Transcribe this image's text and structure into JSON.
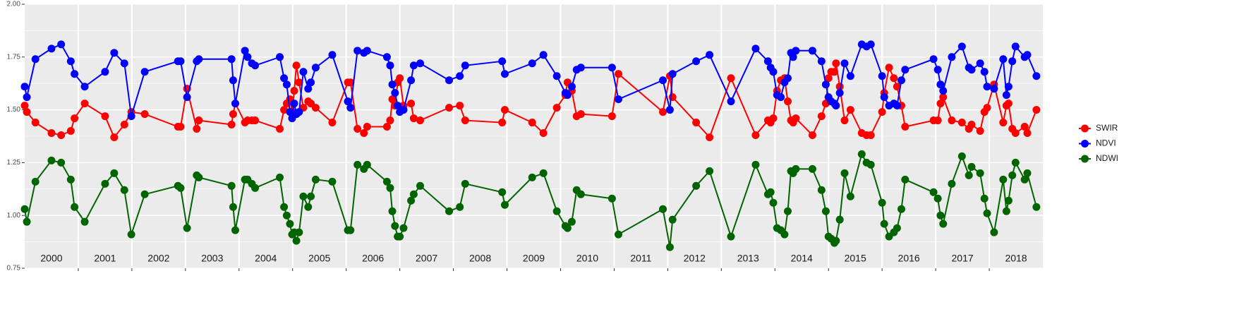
{
  "chart_data": {
    "type": "line",
    "x": [
      2000.0,
      2000.04,
      2000.2,
      2000.5,
      2000.68,
      2000.86,
      2000.93,
      2001.12,
      2001.5,
      2001.67,
      2001.86,
      2001.99,
      2002.24,
      2002.86,
      2002.91,
      2003.03,
      2003.21,
      2003.25,
      2003.86,
      2003.89,
      2003.93,
      2004.11,
      2004.16,
      2004.24,
      2004.3,
      2004.76,
      2004.84,
      2004.89,
      2004.95,
      2004.99,
      2005.03,
      2005.07,
      2005.12,
      2005.2,
      2005.29,
      2005.34,
      2005.43,
      2005.74,
      2006.03,
      2006.08,
      2006.21,
      2006.33,
      2006.39,
      2006.76,
      2006.82,
      2006.86,
      2006.91,
      2006.96,
      2007.0,
      2007.07,
      2007.21,
      2007.26,
      2007.38,
      2007.92,
      2008.12,
      2008.22,
      2008.91,
      2008.96,
      2009.47,
      2009.68,
      2009.93,
      2010.09,
      2010.13,
      2010.21,
      2010.3,
      2010.38,
      2010.96,
      2011.08,
      2011.91,
      2012.04,
      2012.09,
      2012.53,
      2012.78,
      2013.18,
      2013.64,
      2013.87,
      2013.92,
      2013.97,
      2014.04,
      2014.11,
      2014.18,
      2014.24,
      2014.3,
      2014.34,
      2014.39,
      2014.7,
      2014.87,
      2014.95,
      2015.0,
      2015.05,
      2015.11,
      2015.14,
      2015.21,
      2015.3,
      2015.41,
      2015.62,
      2015.71,
      2015.79,
      2016.0,
      2016.04,
      2016.13,
      2016.22,
      2016.28,
      2016.36,
      2016.43,
      2016.96,
      2017.04,
      2017.09,
      2017.14,
      2017.3,
      2017.49,
      2017.62,
      2017.67,
      2017.83,
      2017.91,
      2017.96,
      2018.09,
      2018.26,
      2018.32,
      2018.36,
      2018.43,
      2018.49,
      2018.66,
      2018.71,
      2018.88
    ],
    "series": [
      {
        "name": "SWIR",
        "color": "#ff0000",
        "values": [
          1.52,
          1.49,
          1.44,
          1.39,
          1.38,
          1.4,
          1.46,
          1.53,
          1.47,
          1.37,
          1.43,
          1.49,
          1.48,
          1.42,
          1.42,
          1.6,
          1.41,
          1.45,
          1.43,
          1.48,
          1.53,
          1.44,
          1.45,
          1.45,
          1.45,
          1.41,
          1.5,
          1.53,
          1.55,
          1.49,
          1.59,
          1.71,
          1.63,
          1.51,
          1.54,
          1.53,
          1.51,
          1.44,
          1.63,
          1.63,
          1.41,
          1.39,
          1.42,
          1.42,
          1.45,
          1.55,
          1.52,
          1.63,
          1.65,
          1.52,
          1.53,
          1.46,
          1.45,
          1.51,
          1.52,
          1.45,
          1.44,
          1.5,
          1.44,
          1.39,
          1.51,
          1.57,
          1.63,
          1.59,
          1.47,
          1.48,
          1.47,
          1.67,
          1.49,
          1.66,
          1.56,
          1.44,
          1.37,
          1.65,
          1.38,
          1.45,
          1.44,
          1.46,
          1.59,
          1.64,
          1.65,
          1.54,
          1.45,
          1.44,
          1.46,
          1.38,
          1.47,
          1.53,
          1.65,
          1.68,
          1.68,
          1.72,
          1.61,
          1.45,
          1.5,
          1.39,
          1.38,
          1.38,
          1.49,
          1.58,
          1.7,
          1.65,
          1.61,
          1.52,
          1.42,
          1.45,
          1.45,
          1.53,
          1.56,
          1.45,
          1.44,
          1.41,
          1.43,
          1.4,
          1.49,
          1.51,
          1.62,
          1.44,
          1.52,
          1.53,
          1.41,
          1.39,
          1.42,
          1.39,
          1.5
        ]
      },
      {
        "name": "NDVI",
        "color": "#0000ff",
        "values": [
          1.61,
          1.56,
          1.74,
          1.79,
          1.81,
          1.73,
          1.67,
          1.61,
          1.68,
          1.77,
          1.72,
          1.47,
          1.68,
          1.73,
          1.73,
          1.56,
          1.73,
          1.74,
          1.74,
          1.64,
          1.53,
          1.78,
          1.75,
          1.72,
          1.71,
          1.75,
          1.65,
          1.62,
          1.49,
          1.46,
          1.53,
          1.48,
          1.49,
          1.68,
          1.6,
          1.63,
          1.7,
          1.76,
          1.54,
          1.51,
          1.78,
          1.77,
          1.78,
          1.75,
          1.71,
          1.62,
          1.58,
          1.52,
          1.49,
          1.5,
          1.64,
          1.71,
          1.72,
          1.64,
          1.66,
          1.71,
          1.73,
          1.67,
          1.72,
          1.76,
          1.66,
          1.58,
          1.57,
          1.61,
          1.69,
          1.7,
          1.7,
          1.55,
          1.64,
          1.5,
          1.67,
          1.73,
          1.76,
          1.54,
          1.79,
          1.73,
          1.7,
          1.68,
          1.57,
          1.56,
          1.63,
          1.65,
          1.77,
          1.75,
          1.78,
          1.78,
          1.73,
          1.62,
          1.56,
          1.54,
          1.53,
          1.52,
          1.58,
          1.72,
          1.66,
          1.81,
          1.8,
          1.81,
          1.66,
          1.56,
          1.52,
          1.53,
          1.52,
          1.64,
          1.69,
          1.74,
          1.69,
          1.62,
          1.59,
          1.75,
          1.8,
          1.7,
          1.69,
          1.72,
          1.68,
          1.61,
          1.6,
          1.74,
          1.57,
          1.61,
          1.73,
          1.8,
          1.75,
          1.76,
          1.66
        ]
      },
      {
        "name": "NDWI",
        "color": "#006400",
        "values": [
          1.03,
          0.97,
          1.16,
          1.26,
          1.25,
          1.17,
          1.04,
          0.97,
          1.15,
          1.2,
          1.12,
          0.91,
          1.1,
          1.14,
          1.13,
          0.94,
          1.19,
          1.18,
          1.14,
          1.04,
          0.93,
          1.17,
          1.17,
          1.15,
          1.13,
          1.18,
          1.04,
          1.0,
          0.96,
          0.91,
          0.92,
          0.88,
          0.92,
          1.09,
          1.04,
          1.09,
          1.17,
          1.16,
          0.93,
          0.93,
          1.24,
          1.22,
          1.24,
          1.16,
          1.13,
          1.02,
          0.95,
          0.9,
          0.9,
          0.94,
          1.07,
          1.1,
          1.14,
          1.02,
          1.04,
          1.15,
          1.11,
          1.05,
          1.18,
          1.2,
          1.02,
          0.95,
          0.94,
          0.97,
          1.12,
          1.1,
          1.08,
          0.91,
          1.03,
          0.85,
          0.98,
          1.14,
          1.21,
          0.9,
          1.24,
          1.1,
          1.11,
          1.06,
          0.94,
          0.93,
          0.91,
          1.02,
          1.21,
          1.2,
          1.22,
          1.22,
          1.12,
          1.02,
          0.9,
          0.89,
          0.87,
          0.88,
          0.98,
          1.2,
          1.09,
          1.29,
          1.25,
          1.24,
          1.06,
          0.96,
          0.9,
          0.92,
          0.94,
          1.03,
          1.17,
          1.11,
          1.08,
          1.0,
          0.96,
          1.15,
          1.28,
          1.19,
          1.23,
          1.2,
          1.08,
          1.01,
          0.92,
          1.17,
          1.02,
          1.07,
          1.19,
          1.25,
          1.17,
          1.2,
          1.04
        ]
      }
    ],
    "xlim": [
      2000,
      2019
    ],
    "xticks": [
      {
        "value": 2000.5,
        "label": "2000"
      },
      {
        "value": 2001.5,
        "label": "2001"
      },
      {
        "value": 2002.5,
        "label": "2002"
      },
      {
        "value": 2003.5,
        "label": "2003"
      },
      {
        "value": 2004.5,
        "label": "2004"
      },
      {
        "value": 2005.5,
        "label": "2005"
      },
      {
        "value": 2006.5,
        "label": "2006"
      },
      {
        "value": 2007.5,
        "label": "2007"
      },
      {
        "value": 2008.5,
        "label": "2008"
      },
      {
        "value": 2009.5,
        "label": "2009"
      },
      {
        "value": 2010.5,
        "label": "2010"
      },
      {
        "value": 2011.5,
        "label": "2011"
      },
      {
        "value": 2012.5,
        "label": "2012"
      },
      {
        "value": 2013.5,
        "label": "2013"
      },
      {
        "value": 2014.5,
        "label": "2014"
      },
      {
        "value": 2015.5,
        "label": "2015"
      },
      {
        "value": 2016.5,
        "label": "2016"
      },
      {
        "value": 2017.5,
        "label": "2017"
      },
      {
        "value": 2018.5,
        "label": "2018"
      }
    ],
    "ylim": [
      0.75,
      2.0
    ],
    "yticks": [
      {
        "value": 0.75,
        "label": "0.75"
      },
      {
        "value": 1.0,
        "label": "1.00"
      },
      {
        "value": 1.25,
        "label": "1.25"
      },
      {
        "value": 1.5,
        "label": "1.50"
      },
      {
        "value": 1.75,
        "label": "1.75"
      },
      {
        "value": 2.0,
        "label": "2.00"
      }
    ],
    "grid": true,
    "legend": "right"
  }
}
